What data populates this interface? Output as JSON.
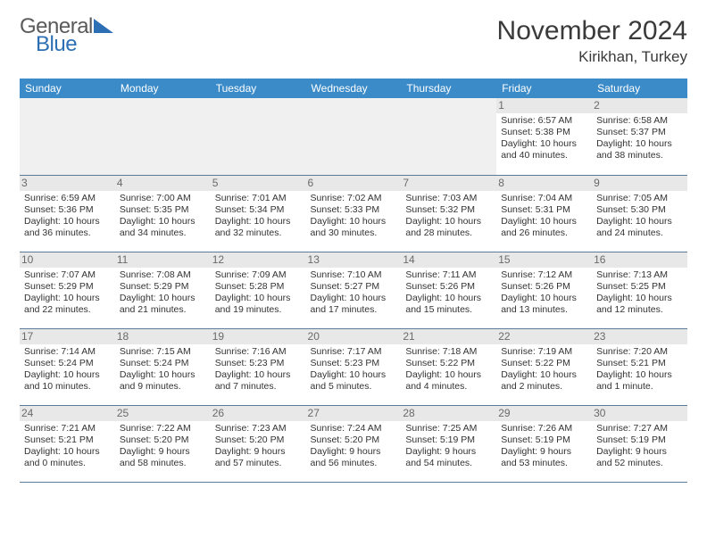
{
  "brand": {
    "general": "General",
    "blue": "Blue"
  },
  "title": "November 2024",
  "location": "Kirikhan, Turkey",
  "colors": {
    "header_bg": "#3b8bc9",
    "header_text": "#ffffff",
    "daynum_bg": "#e8e8e8",
    "border": "#5b7a99",
    "logo_blue": "#2d6fb5",
    "text": "#333333"
  },
  "typography": {
    "title_size": 30,
    "location_size": 17,
    "dayhead_size": 12,
    "cell_size": 10.5
  },
  "daynames": [
    "Sunday",
    "Monday",
    "Tuesday",
    "Wednesday",
    "Thursday",
    "Friday",
    "Saturday"
  ],
  "structure": {
    "type": "calendar",
    "columns": 7,
    "rows": 5,
    "first_day_column_index": 5
  },
  "days": {
    "1": {
      "sunrise": "6:57 AM",
      "sunset": "5:38 PM",
      "daylight": "10 hours and 40 minutes."
    },
    "2": {
      "sunrise": "6:58 AM",
      "sunset": "5:37 PM",
      "daylight": "10 hours and 38 minutes."
    },
    "3": {
      "sunrise": "6:59 AM",
      "sunset": "5:36 PM",
      "daylight": "10 hours and 36 minutes."
    },
    "4": {
      "sunrise": "7:00 AM",
      "sunset": "5:35 PM",
      "daylight": "10 hours and 34 minutes."
    },
    "5": {
      "sunrise": "7:01 AM",
      "sunset": "5:34 PM",
      "daylight": "10 hours and 32 minutes."
    },
    "6": {
      "sunrise": "7:02 AM",
      "sunset": "5:33 PM",
      "daylight": "10 hours and 30 minutes."
    },
    "7": {
      "sunrise": "7:03 AM",
      "sunset": "5:32 PM",
      "daylight": "10 hours and 28 minutes."
    },
    "8": {
      "sunrise": "7:04 AM",
      "sunset": "5:31 PM",
      "daylight": "10 hours and 26 minutes."
    },
    "9": {
      "sunrise": "7:05 AM",
      "sunset": "5:30 PM",
      "daylight": "10 hours and 24 minutes."
    },
    "10": {
      "sunrise": "7:07 AM",
      "sunset": "5:29 PM",
      "daylight": "10 hours and 22 minutes."
    },
    "11": {
      "sunrise": "7:08 AM",
      "sunset": "5:29 PM",
      "daylight": "10 hours and 21 minutes."
    },
    "12": {
      "sunrise": "7:09 AM",
      "sunset": "5:28 PM",
      "daylight": "10 hours and 19 minutes."
    },
    "13": {
      "sunrise": "7:10 AM",
      "sunset": "5:27 PM",
      "daylight": "10 hours and 17 minutes."
    },
    "14": {
      "sunrise": "7:11 AM",
      "sunset": "5:26 PM",
      "daylight": "10 hours and 15 minutes."
    },
    "15": {
      "sunrise": "7:12 AM",
      "sunset": "5:26 PM",
      "daylight": "10 hours and 13 minutes."
    },
    "16": {
      "sunrise": "7:13 AM",
      "sunset": "5:25 PM",
      "daylight": "10 hours and 12 minutes."
    },
    "17": {
      "sunrise": "7:14 AM",
      "sunset": "5:24 PM",
      "daylight": "10 hours and 10 minutes."
    },
    "18": {
      "sunrise": "7:15 AM",
      "sunset": "5:24 PM",
      "daylight": "10 hours and 9 minutes."
    },
    "19": {
      "sunrise": "7:16 AM",
      "sunset": "5:23 PM",
      "daylight": "10 hours and 7 minutes."
    },
    "20": {
      "sunrise": "7:17 AM",
      "sunset": "5:23 PM",
      "daylight": "10 hours and 5 minutes."
    },
    "21": {
      "sunrise": "7:18 AM",
      "sunset": "5:22 PM",
      "daylight": "10 hours and 4 minutes."
    },
    "22": {
      "sunrise": "7:19 AM",
      "sunset": "5:22 PM",
      "daylight": "10 hours and 2 minutes."
    },
    "23": {
      "sunrise": "7:20 AM",
      "sunset": "5:21 PM",
      "daylight": "10 hours and 1 minute."
    },
    "24": {
      "sunrise": "7:21 AM",
      "sunset": "5:21 PM",
      "daylight": "10 hours and 0 minutes."
    },
    "25": {
      "sunrise": "7:22 AM",
      "sunset": "5:20 PM",
      "daylight": "9 hours and 58 minutes."
    },
    "26": {
      "sunrise": "7:23 AM",
      "sunset": "5:20 PM",
      "daylight": "9 hours and 57 minutes."
    },
    "27": {
      "sunrise": "7:24 AM",
      "sunset": "5:20 PM",
      "daylight": "9 hours and 56 minutes."
    },
    "28": {
      "sunrise": "7:25 AM",
      "sunset": "5:19 PM",
      "daylight": "9 hours and 54 minutes."
    },
    "29": {
      "sunrise": "7:26 AM",
      "sunset": "5:19 PM",
      "daylight": "9 hours and 53 minutes."
    },
    "30": {
      "sunrise": "7:27 AM",
      "sunset": "5:19 PM",
      "daylight": "9 hours and 52 minutes."
    }
  },
  "labels": {
    "sunrise": "Sunrise:",
    "sunset": "Sunset:",
    "daylight": "Daylight:"
  }
}
